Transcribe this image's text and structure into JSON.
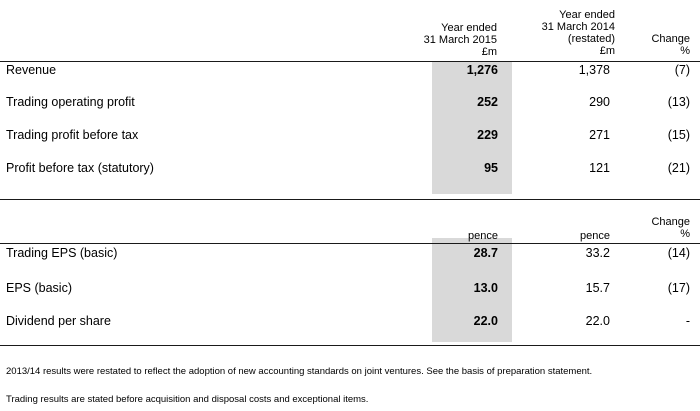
{
  "table1": {
    "headers": {
      "col_2015": [
        "Year ended",
        "31 March 2015",
        "£m"
      ],
      "col_2014": [
        "Year ended",
        "31 March 2014",
        "(restated)",
        "£m"
      ],
      "col_change": [
        "Change",
        "%"
      ]
    },
    "rows": [
      {
        "label": "Revenue",
        "v2015": "1,276",
        "v2014": "1,378",
        "change": "(7)"
      },
      {
        "label": "Trading operating profit",
        "v2015": "252",
        "v2014": "290",
        "change": "(13)"
      },
      {
        "label": "Trading profit before tax",
        "v2015": "229",
        "v2014": "271",
        "change": "(15)"
      },
      {
        "label": "Profit before tax (statutory)",
        "v2015": "95",
        "v2014": "121",
        "change": "(21)"
      }
    ]
  },
  "table2": {
    "headers": {
      "col_2015": "pence",
      "col_2014": "pence",
      "col_change": [
        "Change",
        "%"
      ]
    },
    "rows": [
      {
        "label": "Trading EPS (basic)",
        "v2015": "28.7",
        "v2014": "33.2",
        "change": "(14)"
      },
      {
        "label": "EPS (basic)",
        "v2015": "13.0",
        "v2014": "15.7",
        "change": "(17)"
      },
      {
        "label": "Dividend per share",
        "v2015": "22.0",
        "v2014": "22.0",
        "change": "-"
      }
    ]
  },
  "notes": [
    "2013/14 results were restated to reflect the adoption of new accounting standards on joint ventures. See the basis of preparation statement.",
    "Trading results are stated before acquisition and disposal costs and exceptional items."
  ]
}
